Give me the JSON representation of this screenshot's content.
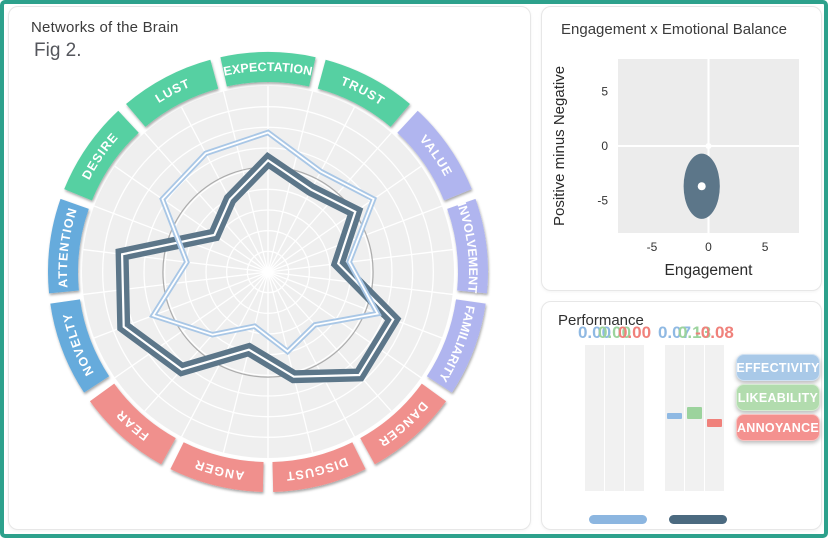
{
  "page": {
    "border_color": "#2da18c",
    "background": "#ffffff"
  },
  "left_panel": {
    "title": "Networks of the Brain",
    "fig_label": "Fig 2."
  },
  "scatter_panel": {
    "title": "Engagement x Emotional Balance"
  },
  "performance_panel": {
    "title": "Performance"
  },
  "legend": {
    "items": [
      {
        "label": "EFFECTIVITY",
        "color": "#a9c9e8"
      },
      {
        "label": "LIKEABILITY",
        "color": "#b2dcae"
      },
      {
        "label": "ANNOYANCE",
        "color": "#f4918f"
      }
    ]
  },
  "chart_data": [
    {
      "id": "brain-radar",
      "type": "radar",
      "title": "Networks of the Brain",
      "categories": [
        "EXPECTATION",
        "TRUST",
        "VALUE",
        "INVOLVEMENT",
        "FAMILIARITY",
        "DANGER",
        "DISGUST",
        "ANGER",
        "FEAR",
        "NOVELTY",
        "ATTENTION",
        "DESIRE",
        "LUST"
      ],
      "segment_colors": [
        "#56d0a2",
        "#56d0a2",
        "#b0b5ef",
        "#b0b5ef",
        "#b0b5ef",
        "#f0908d",
        "#f0908d",
        "#f0908d",
        "#f0908d",
        "#66abdc",
        "#66abdc",
        "#56d0a2",
        "#56d0a2"
      ],
      "rings": 9,
      "spokes": 26,
      "reference_ring": 0.565,
      "scale_note": "values are fraction of full radius, 0 center - 1 outer edge",
      "series": [
        {
          "name": "condition-light-blue",
          "color": "#a9c7e6",
          "values": [
            0.75,
            0.61,
            0.69,
            0.44,
            0.63,
            0.38,
            0.44,
            0.3,
            0.45,
            0.66,
            0.44,
            0.69,
            0.72
          ]
        },
        {
          "name": "condition-dark-slate",
          "color": "#5c7689",
          "values": [
            0.6,
            0.5,
            0.57,
            0.38,
            0.72,
            0.74,
            0.58,
            0.43,
            0.7,
            0.83,
            0.79,
            0.35,
            0.44
          ]
        }
      ]
    },
    {
      "id": "engagement-scatter",
      "type": "scatter",
      "title": "Engagement x Emotional Balance",
      "xlabel": "Engagement",
      "ylabel": "Positive minus Negative",
      "xlim": [
        -8,
        8
      ],
      "ylim": [
        -8,
        8
      ],
      "xticks": [
        "-5",
        "0",
        "5"
      ],
      "xtick_values": [
        -5,
        0,
        5
      ],
      "yticks": [
        "5",
        "0",
        "-5"
      ],
      "ytick_values": [
        5,
        0,
        -5
      ],
      "grid": "white cross at x=0 and y=0",
      "ellipse": {
        "cx": -0.6,
        "cy": -3.7,
        "rx": 1.6,
        "ry": 3.0,
        "color": "#5c7689"
      },
      "center_dot": {
        "x": -0.6,
        "y": -3.7,
        "color": "#ffffff"
      },
      "plot_bg": "#ececec"
    },
    {
      "id": "performance-bars",
      "type": "bar",
      "title": "Performance",
      "series_names": [
        "EFFECTIVITY",
        "LIKEABILITY",
        "ANNOYANCE"
      ],
      "series_colors": [
        "#8fb9e3",
        "#9cd39d",
        "#f0817b"
      ],
      "ylim": [
        -0.75,
        0.78
      ],
      "groups": [
        {
          "name": "condition-light-blue",
          "swatch_color": "#8cb6e0",
          "values": [
            0.0,
            0.0,
            0.0
          ],
          "value_labels": [
            "0.00",
            "0.00",
            "0.00"
          ]
        },
        {
          "name": "condition-dark-slate",
          "swatch_color": "#4b6a80",
          "values": [
            0.07,
            0.13,
            -0.08
          ],
          "value_labels": [
            "0.07",
            "0.13",
            "-0.08"
          ]
        }
      ]
    }
  ]
}
